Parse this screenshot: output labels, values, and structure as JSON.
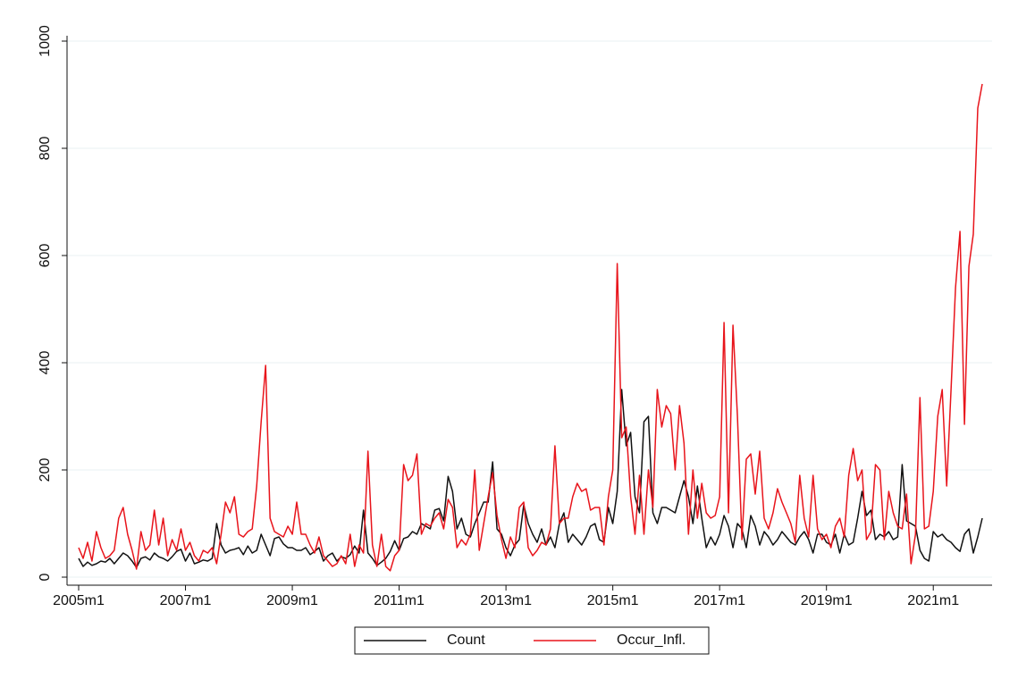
{
  "chart_data": {
    "type": "line",
    "categories": [
      "2005m1",
      null,
      null,
      null,
      null,
      null,
      null,
      null,
      null,
      null,
      null,
      null,
      null,
      null,
      null,
      null,
      null,
      null,
      null,
      null,
      null,
      null,
      null,
      null,
      "2007m1",
      null,
      null,
      null,
      null,
      null,
      null,
      null,
      null,
      null,
      null,
      null,
      null,
      null,
      null,
      null,
      null,
      null,
      null,
      null,
      null,
      null,
      null,
      null,
      "2009m1",
      null,
      null,
      null,
      null,
      null,
      null,
      null,
      null,
      null,
      null,
      null,
      null,
      null,
      null,
      null,
      null,
      null,
      null,
      null,
      null,
      null,
      null,
      null,
      "2011m1",
      null,
      null,
      null,
      null,
      null,
      null,
      null,
      null,
      null,
      null,
      null,
      null,
      null,
      null,
      null,
      null,
      null,
      null,
      null,
      null,
      null,
      null,
      null,
      "2013m1",
      null,
      null,
      null,
      null,
      null,
      null,
      null,
      null,
      null,
      null,
      null,
      null,
      null,
      null,
      null,
      null,
      null,
      null,
      null,
      null,
      null,
      null,
      null,
      "2015m1",
      null,
      null,
      null,
      null,
      null,
      null,
      null,
      null,
      null,
      null,
      null,
      null,
      null,
      null,
      null,
      null,
      null,
      null,
      null,
      null,
      null,
      null,
      null,
      "2017m1",
      null,
      null,
      null,
      null,
      null,
      null,
      null,
      null,
      null,
      null,
      null,
      null,
      null,
      null,
      null,
      null,
      null,
      null,
      null,
      null,
      null,
      null,
      null,
      "2019m1",
      null,
      null,
      null,
      null,
      null,
      null,
      null,
      null,
      null,
      null,
      null,
      null,
      null,
      null,
      null,
      null,
      null,
      null,
      null,
      null,
      null,
      null,
      null,
      "2021m1",
      null,
      null,
      null,
      null,
      null,
      null,
      null,
      null,
      null,
      null,
      null
    ],
    "series": [
      {
        "name": "Count",
        "color": "#111111",
        "values": [
          35,
          20,
          28,
          22,
          25,
          30,
          28,
          35,
          25,
          35,
          45,
          40,
          30,
          18,
          35,
          38,
          32,
          45,
          38,
          35,
          30,
          38,
          48,
          52,
          30,
          45,
          25,
          28,
          32,
          30,
          35,
          100,
          60,
          45,
          50,
          52,
          55,
          42,
          58,
          45,
          50,
          80,
          60,
          40,
          72,
          75,
          62,
          55,
          55,
          50,
          50,
          55,
          42,
          48,
          55,
          30,
          40,
          45,
          30,
          38,
          35,
          42,
          58,
          45,
          125,
          45,
          35,
          22,
          28,
          35,
          48,
          68,
          50,
          72,
          75,
          85,
          80,
          100,
          95,
          90,
          125,
          128,
          105,
          188,
          160,
          90,
          110,
          80,
          75,
          100,
          120,
          140,
          140,
          215,
          90,
          80,
          55,
          40,
          60,
          70,
          135,
          100,
          80,
          65,
          90,
          60,
          75,
          55,
          100,
          120,
          65,
          80,
          70,
          60,
          75,
          95,
          100,
          70,
          65,
          130,
          100,
          160,
          350,
          245,
          270,
          150,
          120,
          290,
          300,
          120,
          100,
          130,
          130,
          125,
          120,
          150,
          180,
          150,
          100,
          170,
          110,
          55,
          75,
          60,
          80,
          115,
          95,
          55,
          100,
          90,
          55,
          115,
          95,
          60,
          85,
          75,
          60,
          70,
          85,
          75,
          65,
          60,
          75,
          85,
          70,
          45,
          80,
          80,
          65,
          60,
          80,
          45,
          80,
          60,
          65,
          110,
          160,
          115,
          125,
          70,
          80,
          75,
          85,
          70,
          75,
          210,
          105,
          100,
          95,
          50,
          35,
          30,
          85,
          75,
          80,
          70,
          65,
          55,
          48,
          80,
          90,
          45,
          75,
          110
        ]
      },
      {
        "name": "Occur_Infl.",
        "color": "#e8141b",
        "values": [
          55,
          35,
          65,
          30,
          85,
          55,
          35,
          40,
          50,
          110,
          130,
          80,
          50,
          15,
          85,
          50,
          60,
          125,
          60,
          110,
          40,
          70,
          50,
          90,
          50,
          65,
          40,
          30,
          50,
          45,
          55,
          25,
          80,
          140,
          120,
          150,
          80,
          75,
          85,
          90,
          170,
          290,
          395,
          110,
          85,
          80,
          75,
          95,
          80,
          140,
          80,
          80,
          60,
          45,
          75,
          40,
          30,
          20,
          25,
          40,
          25,
          80,
          20,
          60,
          45,
          235,
          60,
          20,
          80,
          20,
          12,
          40,
          50,
          210,
          180,
          190,
          230,
          80,
          100,
          95,
          110,
          120,
          90,
          145,
          130,
          55,
          70,
          60,
          80,
          200,
          50,
          100,
          150,
          195,
          115,
          70,
          35,
          75,
          55,
          130,
          140,
          55,
          40,
          50,
          65,
          60,
          90,
          245,
          100,
          110,
          110,
          150,
          175,
          160,
          165,
          125,
          130,
          130,
          60,
          150,
          200,
          585,
          260,
          280,
          150,
          80,
          190,
          80,
          200,
          130,
          350,
          280,
          320,
          305,
          200,
          320,
          250,
          80,
          200,
          110,
          175,
          120,
          110,
          115,
          150,
          475,
          120,
          470,
          300,
          70,
          220,
          230,
          155,
          235,
          110,
          90,
          120,
          165,
          140,
          120,
          100,
          65,
          190,
          110,
          75,
          190,
          90,
          70,
          80,
          55,
          95,
          110,
          75,
          190,
          240,
          180,
          200,
          70,
          85,
          210,
          200,
          70,
          160,
          120,
          95,
          90,
          155,
          25,
          80,
          335,
          90,
          95,
          160,
          300,
          350,
          170,
          350,
          540,
          645,
          285,
          580,
          640,
          875,
          920
        ]
      }
    ],
    "ylim": [
      0,
      1000
    ],
    "yticks": [
      0,
      200,
      400,
      600,
      800,
      1000
    ],
    "grid": true
  }
}
